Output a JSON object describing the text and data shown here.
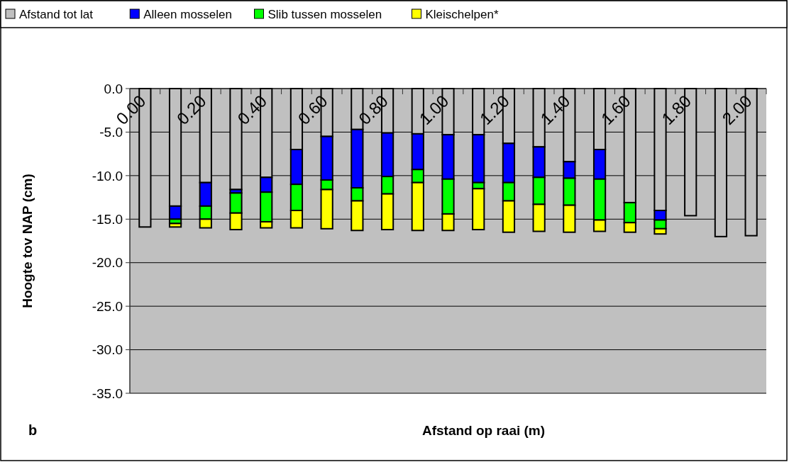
{
  "chart_data": {
    "type": "bar",
    "stacked": true,
    "xlabel": "Afstand op raai (m)",
    "ylabel": "Hoogte tov NAP (cm)",
    "annotations": [
      "b"
    ],
    "categories": [
      "0.00",
      null,
      "0.20",
      null,
      "0.40",
      null,
      "0.60",
      null,
      "0.80",
      null,
      "1.00",
      null,
      "1.20",
      null,
      "1.40",
      null,
      "1.60",
      null,
      "1.80",
      null,
      "2.00"
    ],
    "series": [
      {
        "name": "Afstand tot lat",
        "color": "#c0c0c0",
        "values": [
          -15.9,
          -13.5,
          -10.8,
          -11.6,
          -10.2,
          -7.0,
          -5.5,
          -4.7,
          -5.1,
          -5.2,
          -5.3,
          -5.3,
          -6.3,
          -6.7,
          -8.4,
          -7.0,
          -13.1,
          -14.0,
          -14.6,
          -17.0,
          -16.9
        ]
      },
      {
        "name": "Alleen mosselen",
        "color": "#0000ff",
        "values": [
          null,
          -1.5,
          -2.7,
          -0.4,
          -1.7,
          -4.0,
          -5.0,
          -6.7,
          -5.0,
          -4.1,
          -5.1,
          -5.5,
          -4.5,
          -3.5,
          -1.9,
          -3.4,
          null,
          -1.1,
          null,
          null,
          null
        ]
      },
      {
        "name": "Slib tussen mosselen",
        "color": "#00ff00",
        "values": [
          null,
          -0.5,
          -1.5,
          -2.3,
          -3.4,
          -3.0,
          -1.1,
          -1.5,
          -2.0,
          -1.5,
          -4.0,
          -0.7,
          -2.1,
          -3.1,
          -3.1,
          -4.7,
          -2.3,
          -1.0,
          null,
          null,
          null
        ]
      },
      {
        "name": "Kleischelpen*",
        "color": "#ffff00",
        "values": [
          null,
          -0.4,
          -1.0,
          -1.9,
          -0.7,
          -2.0,
          -4.5,
          -3.4,
          -4.1,
          -5.5,
          -1.9,
          -4.7,
          -3.6,
          -3.1,
          -3.1,
          -1.3,
          -1.1,
          -0.6,
          null,
          null,
          null
        ]
      }
    ],
    "ylim": [
      -35,
      0
    ],
    "yticks": [
      {
        "value": 0,
        "label": "0.0"
      },
      {
        "value": -5,
        "label": "-5.0"
      },
      {
        "value": -10,
        "label": "-10.0"
      },
      {
        "value": -15,
        "label": "-15.0"
      },
      {
        "value": -20,
        "label": "-20.0"
      },
      {
        "value": -25,
        "label": "-25.0"
      },
      {
        "value": -30,
        "label": "-30.0"
      },
      {
        "value": -35,
        "label": "-35.0"
      }
    ],
    "grid": "y",
    "legend": "top"
  }
}
